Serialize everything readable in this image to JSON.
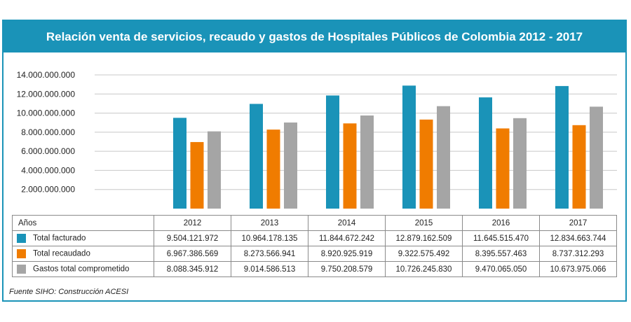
{
  "title": "Relación venta de servicios, recaudo y gastos de Hospitales Públicos de Colombia 2012 - 2017",
  "source": "Fuente SIHO: Construcción ACESI",
  "colors": {
    "accent": "#1a93b8",
    "facturado": "#1a93b8",
    "recaudado": "#f07c00",
    "gastos": "#a5a5a5",
    "grid": "#c8c8c8"
  },
  "chart_data": {
    "type": "bar",
    "title": "Relación venta de servicios, recaudo y gastos de Hospitales Públicos de Colombia 2012 - 2017",
    "categories": [
      "2012",
      "2013",
      "2014",
      "2015",
      "2016",
      "2017"
    ],
    "series": [
      {
        "name": "Total facturado",
        "values": [
          9504121972,
          10964178135,
          11844672242,
          12879162509,
          11645515470,
          12834663744
        ]
      },
      {
        "name": "Total recaudado",
        "values": [
          6967386569,
          8273566941,
          8920925919,
          9322575492,
          8395557463,
          8737312293
        ]
      },
      {
        "name": "Gastos total comprometido",
        "values": [
          8088345912,
          9014586513,
          9750208579,
          10726245830,
          9470065050,
          10673975066
        ]
      }
    ],
    "ylim": [
      0,
      14000000000
    ],
    "yticks": [
      2000000000,
      4000000000,
      6000000000,
      8000000000,
      10000000000,
      12000000000,
      14000000000
    ],
    "ytick_labels": [
      "2.000.000.000",
      "4.000.000.000",
      "6.000.000.000",
      "8.000.000.000",
      "10.000.000.000",
      "12.000.000.000",
      "14.000.000.000"
    ],
    "grid": true,
    "legend": "data-table-below"
  },
  "table": {
    "header_label": "Años",
    "years": [
      "2012",
      "2013",
      "2014",
      "2015",
      "2016",
      "2017"
    ],
    "rows": [
      {
        "label": "Total facturado",
        "color": "#1a93b8",
        "values": [
          "9.504.121.972",
          "10.964.178.135",
          "11.844.672.242",
          "12.879.162.509",
          "11.645.515.470",
          "12.834.663.744"
        ]
      },
      {
        "label": "Total recaudado",
        "color": "#f07c00",
        "values": [
          "6.967.386.569",
          "8.273.566.941",
          "8.920.925.919",
          "9.322.575.492",
          "8.395.557.463",
          "8.737.312.293"
        ]
      },
      {
        "label": "Gastos total comprometido",
        "color": "#a5a5a5",
        "values": [
          "8.088.345.912",
          "9.014.586.513",
          "9.750.208.579",
          "10.726.245.830",
          "9.470.065.050",
          "10.673.975.066"
        ]
      }
    ]
  }
}
